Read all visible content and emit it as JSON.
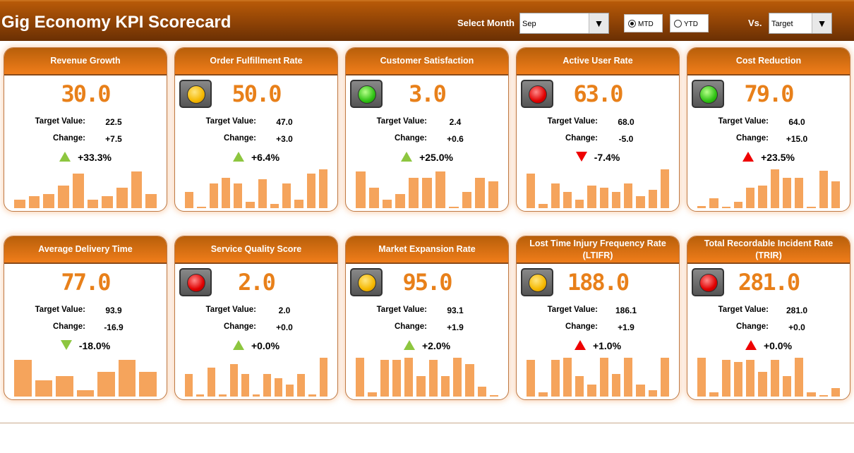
{
  "header": {
    "title": "Gig Economy KPI Scorecard",
    "month_label": "Select Month",
    "month_value": "Sep",
    "mtd": "MTD",
    "ytd": "YTD",
    "selected_period": "MTD",
    "vs_label": "Vs.",
    "vs_value": "Target",
    "dropdown_arrow": "▼"
  },
  "colors": {
    "green": "#8dc63f",
    "red": "#e00000",
    "amber": "#f5b800",
    "bar": "#f5a45c"
  },
  "labels": {
    "target": "Target Value:",
    "change": "Change:"
  },
  "cards": [
    {
      "title": "Revenue Growth",
      "light": "none",
      "value": "30.0",
      "target": "22.5",
      "change": "+7.5",
      "pct": "+33.3%",
      "arrow": "up-green",
      "bars": [
        0.2,
        0.3,
        0.35,
        0.55,
        0.85,
        0.2,
        0.3,
        0.5,
        0.9,
        0.35
      ]
    },
    {
      "title": "Order Fulfillment Rate",
      "light": "amber",
      "value": "50.0",
      "target": "47.0",
      "change": "+3.0",
      "pct": "+6.4%",
      "arrow": "up-green",
      "bars": [
        0.4,
        0,
        0.6,
        0.75,
        0.6,
        0.15,
        0.7,
        0.1,
        0.6,
        0.2,
        0.85,
        0.95
      ]
    },
    {
      "title": "Customer Satisfaction",
      "light": "green",
      "value": "3.0",
      "target": "2.4",
      "change": "+0.6",
      "pct": "+25.0%",
      "arrow": "up-green",
      "bars": [
        0.9,
        0.5,
        0.2,
        0.35,
        0.75,
        0.75,
        0.9,
        0.02,
        0.4,
        0.75,
        0.65
      ]
    },
    {
      "title": "Active User Rate",
      "light": "red",
      "value": "63.0",
      "target": "68.0",
      "change": "-5.0",
      "pct": "-7.4%",
      "arrow": "down-red",
      "bars": [
        0.85,
        0.1,
        0.6,
        0.4,
        0.2,
        0.55,
        0.5,
        0.4,
        0.6,
        0.3,
        0.45,
        0.95
      ]
    },
    {
      "title": "Cost Reduction",
      "light": "green",
      "value": "79.0",
      "target": "64.0",
      "change": "+15.0",
      "pct": "+23.5%",
      "arrow": "up-red",
      "bars": [
        0.05,
        0.25,
        0,
        0.15,
        0.5,
        0.55,
        0.95,
        0.75,
        0.75,
        0.02,
        0.92,
        0.65
      ]
    },
    {
      "title": "Average Delivery Time",
      "light": "none",
      "value": "77.0",
      "target": "93.9",
      "change": "-16.9",
      "pct": "-18.0%",
      "arrow": "down-green",
      "bars": [
        0.9,
        0.4,
        0.5,
        0.15,
        0.6,
        0.9,
        0.6
      ]
    },
    {
      "title": "Service Quality Score",
      "light": "red",
      "value": "2.0",
      "target": "2.0",
      "change": "+0.0",
      "pct": "+0.0%",
      "arrow": "up-green",
      "bars": [
        0.55,
        0.05,
        0.7,
        0.05,
        0.8,
        0.55,
        0.05,
        0.55,
        0.45,
        0.3,
        0.55,
        0.05,
        0.95
      ]
    },
    {
      "title": "Market Expansion Rate",
      "light": "amber",
      "value": "95.0",
      "target": "93.1",
      "change": "+1.9",
      "pct": "+2.0%",
      "arrow": "up-green",
      "bars": [
        0.95,
        0.1,
        0.9,
        0.9,
        0.95,
        0.5,
        0.9,
        0.5,
        0.95,
        0.8,
        0.25,
        0.02
      ]
    },
    {
      "title": "Lost Time Injury Frequency Rate (LTIFR)",
      "light": "amber",
      "value": "188.0",
      "target": "186.1",
      "change": "+1.9",
      "pct": "+1.0%",
      "arrow": "up-red",
      "bars": [
        0.9,
        0.1,
        0.9,
        0.95,
        0.5,
        0.3,
        0.95,
        0.55,
        0.95,
        0.3,
        0.15,
        0.95
      ]
    },
    {
      "title": "Total Recordable Incident Rate (TRIR)",
      "light": "red",
      "value": "281.0",
      "target": "281.0",
      "change": "+0.0",
      "pct": "+0.0%",
      "arrow": "up-red",
      "bars": [
        0.95,
        0.1,
        0.9,
        0.85,
        0.9,
        0.6,
        0.9,
        0.5,
        0.95,
        0.1,
        0.02,
        0.2
      ]
    }
  ]
}
